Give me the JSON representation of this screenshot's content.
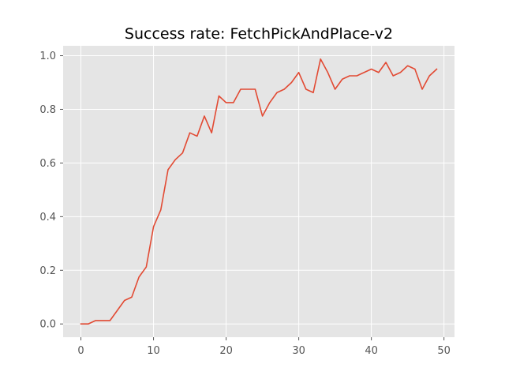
{
  "chart_data": {
    "type": "line",
    "title": "Success rate: FetchPickAndPlace-v2",
    "xlabel": "",
    "ylabel": "",
    "xlim": [
      -2.45,
      51.45
    ],
    "ylim": [
      -0.0494,
      1.0369
    ],
    "xticks": [
      0,
      10,
      20,
      30,
      40,
      50
    ],
    "xtick_labels": [
      "0",
      "10",
      "20",
      "30",
      "40",
      "50"
    ],
    "yticks": [
      0.0,
      0.2,
      0.4,
      0.6,
      0.8,
      1.0
    ],
    "ytick_labels": [
      "0.0",
      "0.2",
      "0.4",
      "0.6",
      "0.8",
      "1.0"
    ],
    "grid": true,
    "legend": "none",
    "colors": {
      "background": "#e5e5e5",
      "grid": "#ffffff",
      "line": "#e24a33",
      "tick": "#555555"
    },
    "series": [
      {
        "x": [
          0,
          1,
          2,
          3,
          4,
          5,
          6,
          7,
          8,
          9,
          10,
          11,
          12,
          13,
          14,
          15,
          16,
          17,
          18,
          19,
          20,
          21,
          22,
          23,
          24,
          25,
          26,
          27,
          28,
          29,
          30,
          31,
          32,
          33,
          34,
          35,
          36,
          37,
          38,
          39,
          40,
          41,
          42,
          43,
          44,
          45,
          46,
          47,
          48,
          49
        ],
        "values": [
          0.0,
          0.0,
          0.0125,
          0.0125,
          0.0125,
          0.05,
          0.0875,
          0.1,
          0.175,
          0.2125,
          0.3625,
          0.425,
          0.575,
          0.6125,
          0.6375,
          0.7125,
          0.7,
          0.775,
          0.7125,
          0.85,
          0.825,
          0.825,
          0.875,
          0.875,
          0.875,
          0.775,
          0.825,
          0.8625,
          0.875,
          0.9,
          0.9375,
          0.875,
          0.8625,
          0.9875,
          0.9375,
          0.875,
          0.9125,
          0.925,
          0.925,
          0.9375,
          0.95,
          0.9375,
          0.975,
          0.925,
          0.9375,
          0.9625,
          0.95,
          0.875,
          0.925,
          0.95
        ]
      }
    ]
  }
}
